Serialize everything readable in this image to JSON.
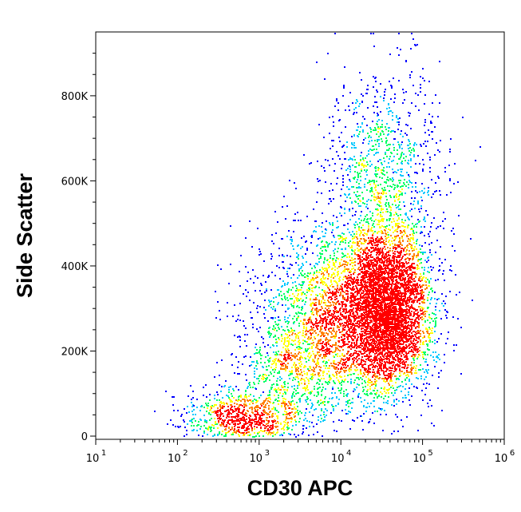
{
  "chart_data": {
    "type": "scatter",
    "subtype": "density-dot-plot",
    "xlabel": "CD30 APC",
    "ylabel": "Side Scatter",
    "x_scale": "log10",
    "xlim": [
      10,
      1000000
    ],
    "ylim": [
      0,
      950000
    ],
    "x_ticks": [
      {
        "value": 10,
        "base": "10",
        "exp": "1"
      },
      {
        "value": 100,
        "base": "10",
        "exp": "2"
      },
      {
        "value": 1000,
        "base": "10",
        "exp": "3"
      },
      {
        "value": 10000,
        "base": "10",
        "exp": "4"
      },
      {
        "value": 100000,
        "base": "10",
        "exp": "5"
      },
      {
        "value": 1000000,
        "base": "10",
        "exp": "6"
      }
    ],
    "y_ticks": [
      {
        "value": 0,
        "label": "0"
      },
      {
        "value": 200000,
        "label": "200K"
      },
      {
        "value": 400000,
        "label": "400K"
      },
      {
        "value": 600000,
        "label": "600K"
      },
      {
        "value": 800000,
        "label": "800K"
      }
    ],
    "density_colors": [
      "#0000ff",
      "#00c8ff",
      "#00ff64",
      "#ffff00",
      "#ff8000",
      "#ff0000"
    ],
    "populations": [
      {
        "log10_x_center": 4.55,
        "y_center": 300000,
        "log10_x_sd": 0.28,
        "y_sd": 95000,
        "weight": 0.5
      },
      {
        "log10_x_center": 3.8,
        "y_center": 280000,
        "log10_x_sd": 0.45,
        "y_sd": 110000,
        "weight": 0.22
      },
      {
        "log10_x_center": 4.5,
        "y_center": 600000,
        "log10_x_sd": 0.35,
        "y_sd": 130000,
        "weight": 0.12
      },
      {
        "log10_x_center": 2.8,
        "y_center": 40000,
        "log10_x_sd": 0.35,
        "y_sd": 35000,
        "weight": 0.1
      },
      {
        "log10_x_center": 3.4,
        "y_center": 150000,
        "log10_x_sd": 0.35,
        "y_sd": 60000,
        "weight": 0.06
      }
    ],
    "grid": false,
    "legend": "none"
  }
}
